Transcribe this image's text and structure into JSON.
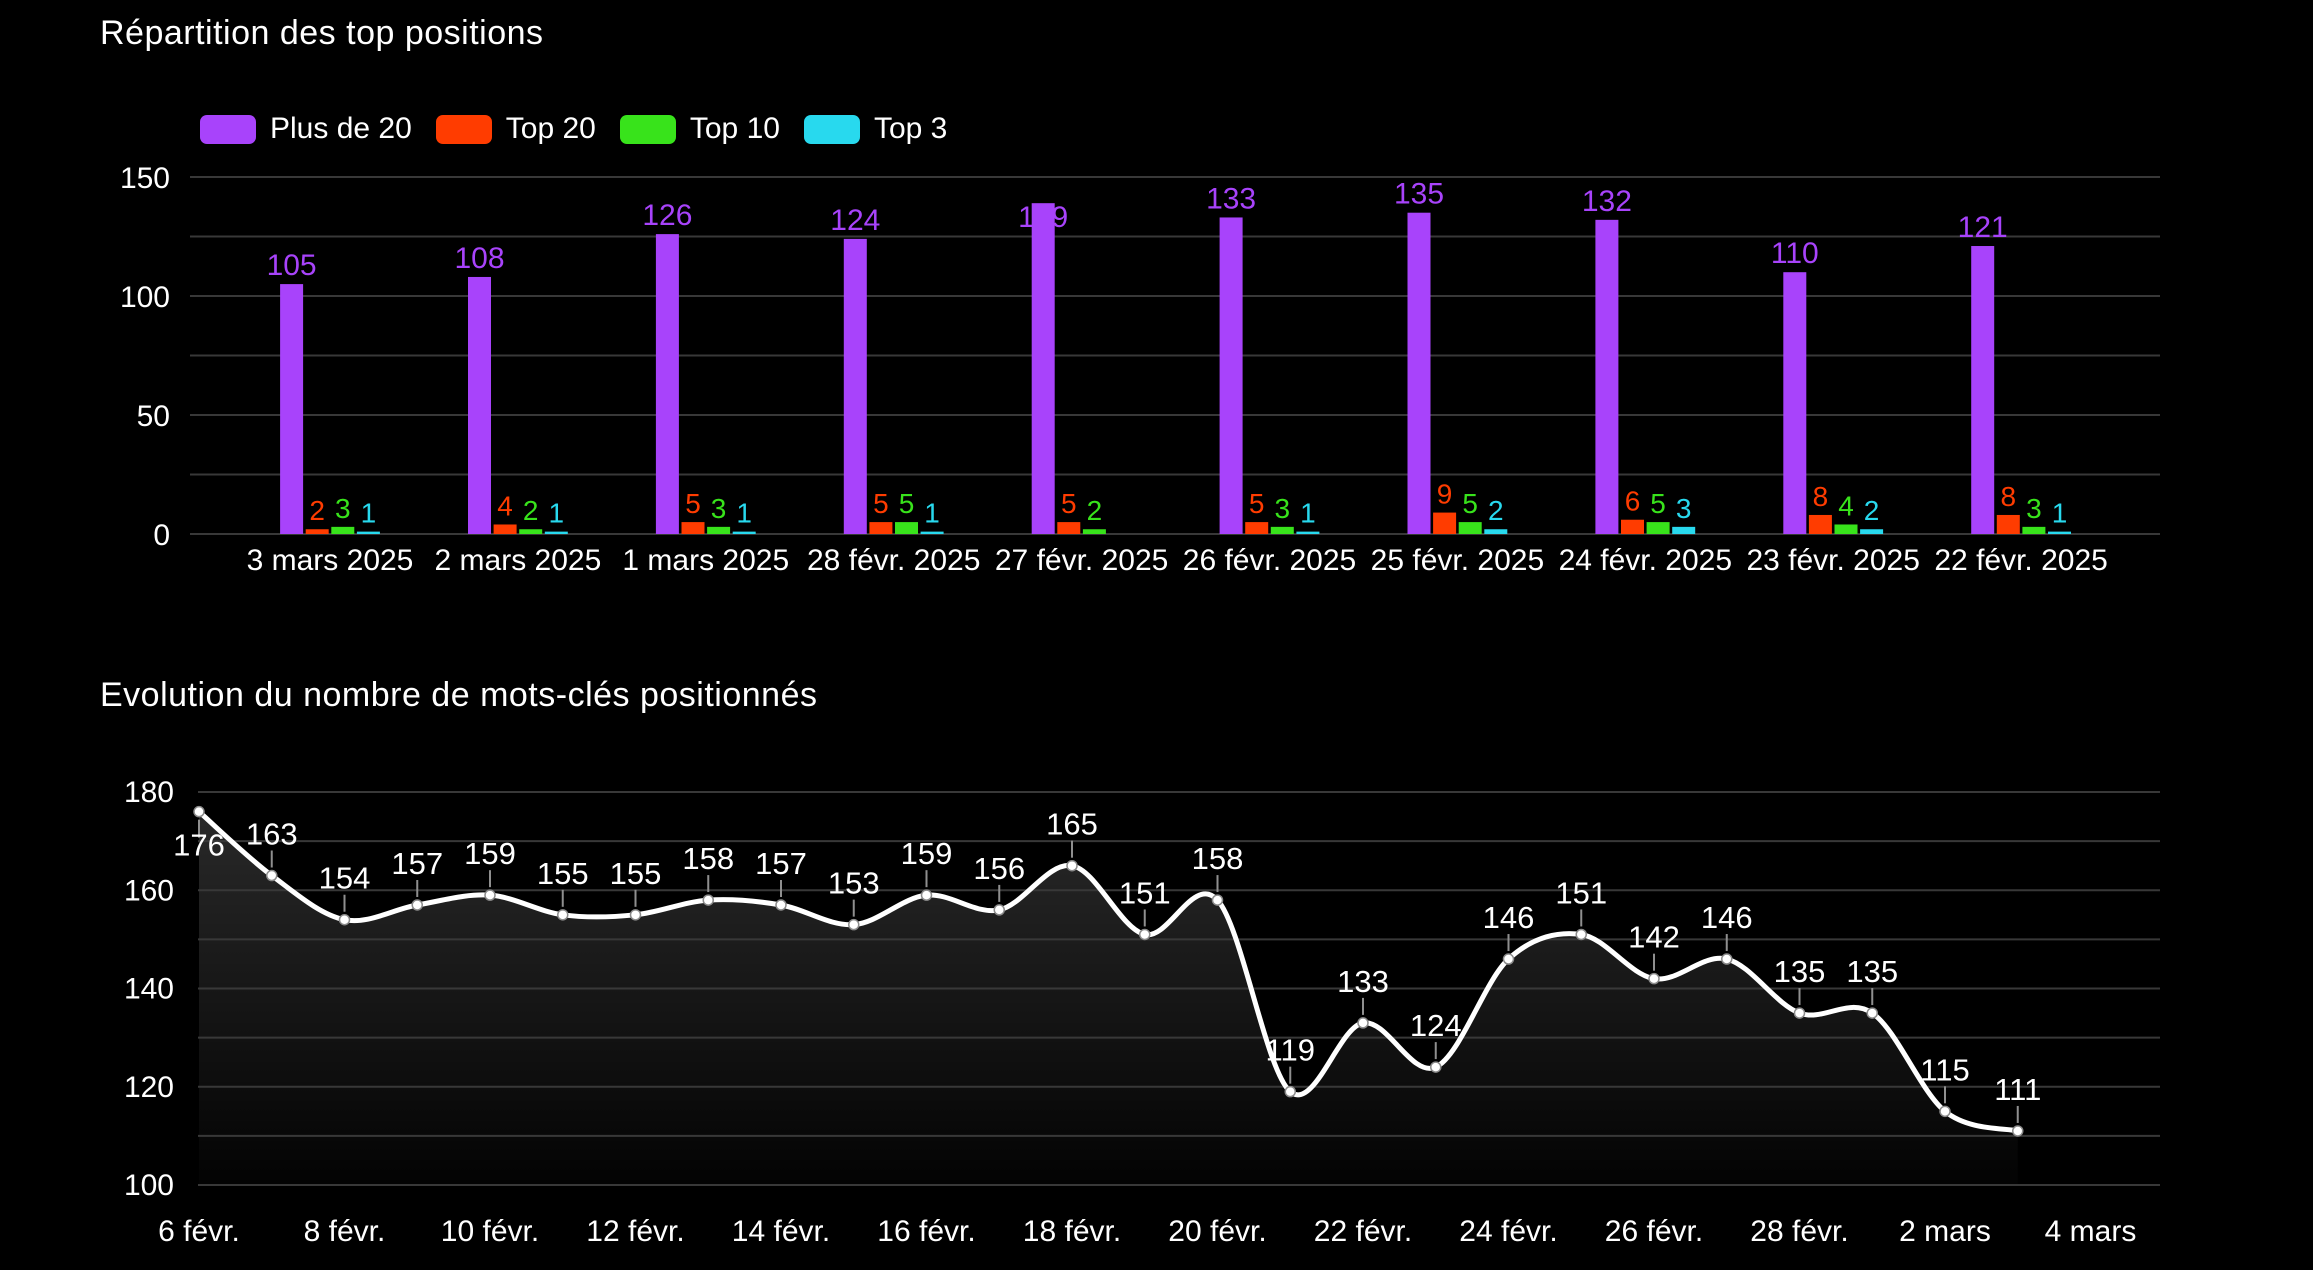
{
  "page": {
    "background": "#000000",
    "text_color": "#ffffff",
    "grid_color": "#383838",
    "stem_color": "#8f8f8f"
  },
  "chart_data": [
    {
      "type": "bar",
      "title": "Répartition des top positions",
      "legend_position": "top-left",
      "grid": true,
      "grid_interval": 25,
      "ylim": [
        0,
        150
      ],
      "ytick_labels": [
        "0",
        "50",
        "100",
        "150"
      ],
      "categories": [
        "3 mars 2025",
        "2 mars 2025",
        "1 mars 2025",
        "28 févr. 2025",
        "27 févr. 2025",
        "26 févr. 2025",
        "25 févr. 2025",
        "24 févr. 2025",
        "23 févr. 2025",
        "22 févr. 2025"
      ],
      "series": [
        {
          "name": "Plus de 20",
          "color": "#a843fb",
          "values": [
            105,
            108,
            126,
            124,
            139,
            133,
            135,
            132,
            110,
            121
          ]
        },
        {
          "name": "Top 20",
          "color": "#ff3c00",
          "values": [
            2,
            4,
            5,
            5,
            5,
            5,
            9,
            6,
            8,
            8
          ]
        },
        {
          "name": "Top 10",
          "color": "#38e31b",
          "values": [
            3,
            2,
            3,
            5,
            2,
            3,
            5,
            5,
            4,
            3
          ]
        },
        {
          "name": "Top 3",
          "color": "#28d9ee",
          "values": [
            1,
            1,
            1,
            1,
            0,
            1,
            2,
            3,
            2,
            1
          ]
        }
      ]
    },
    {
      "type": "line",
      "title": "Evolution du nombre de mots-clés positionnés",
      "grid": true,
      "grid_interval": 10,
      "ylim": [
        100,
        180
      ],
      "ytick_labels": [
        "100",
        "120",
        "140",
        "160",
        "180"
      ],
      "x_tick_labels": [
        "6 févr.",
        "8 févr.",
        "10 févr.",
        "12 févr.",
        "14 févr.",
        "16 févr.",
        "18 févr.",
        "20 févr.",
        "22 févr.",
        "24 févr.",
        "26 févr.",
        "28 févr.",
        "2 mars",
        "4 mars"
      ],
      "x_tick_every": 2,
      "line_color": "#ffffff",
      "values": [
        176,
        163,
        154,
        157,
        159,
        155,
        155,
        158,
        157,
        153,
        159,
        156,
        165,
        151,
        158,
        119,
        133,
        124,
        146,
        151,
        142,
        146,
        135,
        135,
        115,
        111
      ]
    }
  ]
}
